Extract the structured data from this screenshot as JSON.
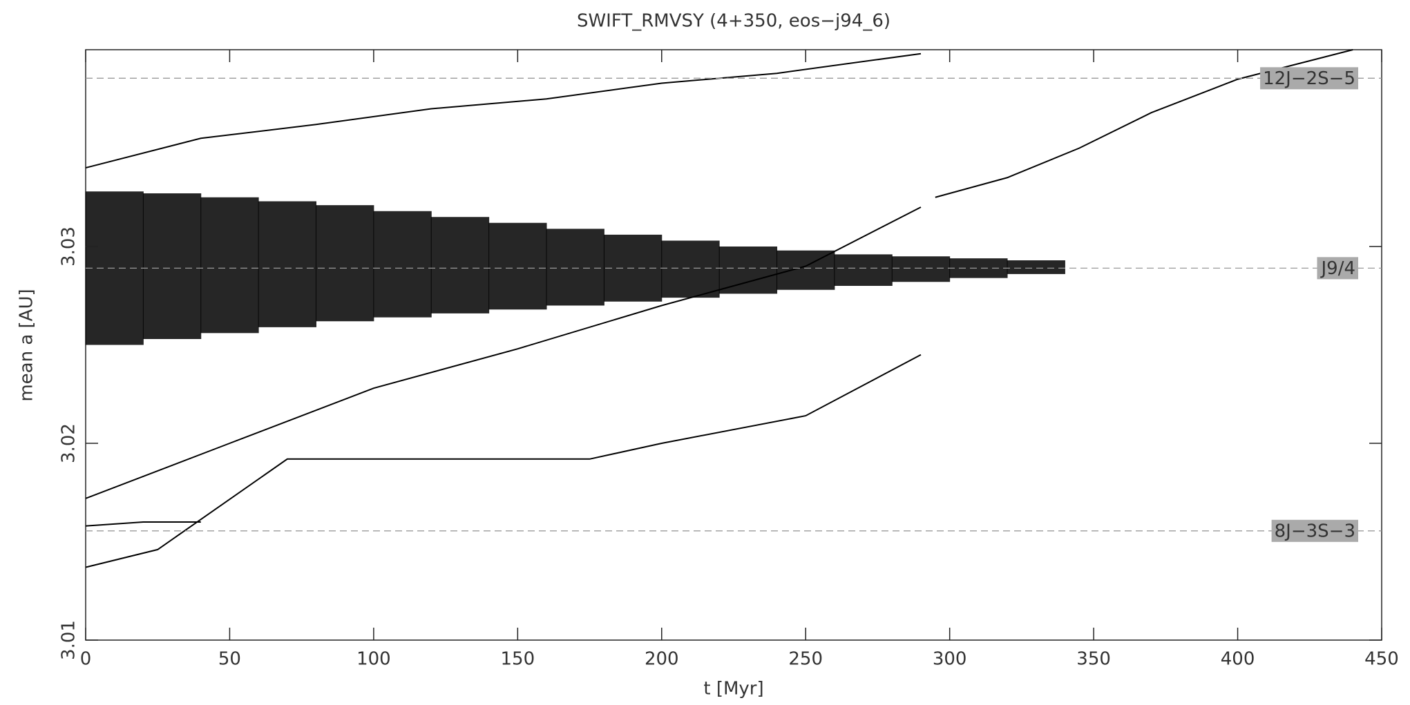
{
  "chart_data": {
    "type": "line",
    "title": "SWIFT_RMVSY (4+350, eos−j94_6)",
    "x_label": "t [Myr]",
    "y_label": "mean a [AU]",
    "xlim": [
      0,
      450
    ],
    "xticks": [
      0,
      50,
      100,
      150,
      200,
      250,
      300,
      350,
      400,
      450
    ],
    "ylim": [
      3.01,
      3.04
    ],
    "yticks": [
      3.01,
      3.02,
      3.03
    ],
    "color": "#000000",
    "resonances": [
      {
        "label": "12J−2S−5",
        "value": 3.03855
      },
      {
        "label": "J9/4",
        "value": 3.0289
      },
      {
        "label": "8J−3S−3",
        "value": 3.01555
      }
    ],
    "band": {
      "x": [
        0,
        20,
        40,
        60,
        80,
        100,
        120,
        140,
        160,
        180,
        200,
        220,
        240,
        260,
        280,
        300,
        320
      ],
      "lower": [
        3.025,
        3.0253,
        3.0256,
        3.0259,
        3.0262,
        3.0264,
        3.0266,
        3.0268,
        3.027,
        3.0272,
        3.0274,
        3.0276,
        3.0278,
        3.028,
        3.0282,
        3.0284,
        3.0286
      ],
      "upper": [
        3.0328,
        3.0327,
        3.0325,
        3.0323,
        3.0321,
        3.0318,
        3.0315,
        3.0312,
        3.0309,
        3.0306,
        3.0303,
        3.03,
        3.0298,
        3.0296,
        3.0295,
        3.0294,
        3.0293
      ]
    },
    "series": [
      {
        "x": [
          0,
          25,
          70,
          175,
          200,
          250,
          290
        ],
        "values": [
          3.0137,
          3.0146,
          3.0192,
          3.0192,
          3.02,
          3.0214,
          3.0245
        ]
      },
      {
        "x": [
          0,
          50,
          100,
          150,
          200,
          250,
          290
        ],
        "values": [
          3.0172,
          3.02,
          3.0228,
          3.0248,
          3.027,
          3.029,
          3.032
        ]
      },
      {
        "x": [
          0,
          40,
          80,
          120,
          160,
          200,
          240,
          290
        ],
        "values": [
          3.034,
          3.0355,
          3.0362,
          3.037,
          3.0375,
          3.0383,
          3.0388,
          3.0398
        ]
      },
      {
        "x": [
          295,
          320,
          345,
          370,
          400,
          440
        ],
        "values": [
          3.0325,
          3.0335,
          3.035,
          3.0368,
          3.0385,
          3.04
        ]
      },
      {
        "x": [
          0,
          20,
          40
        ],
        "values": [
          3.0158,
          3.016,
          3.016
        ]
      }
    ]
  }
}
